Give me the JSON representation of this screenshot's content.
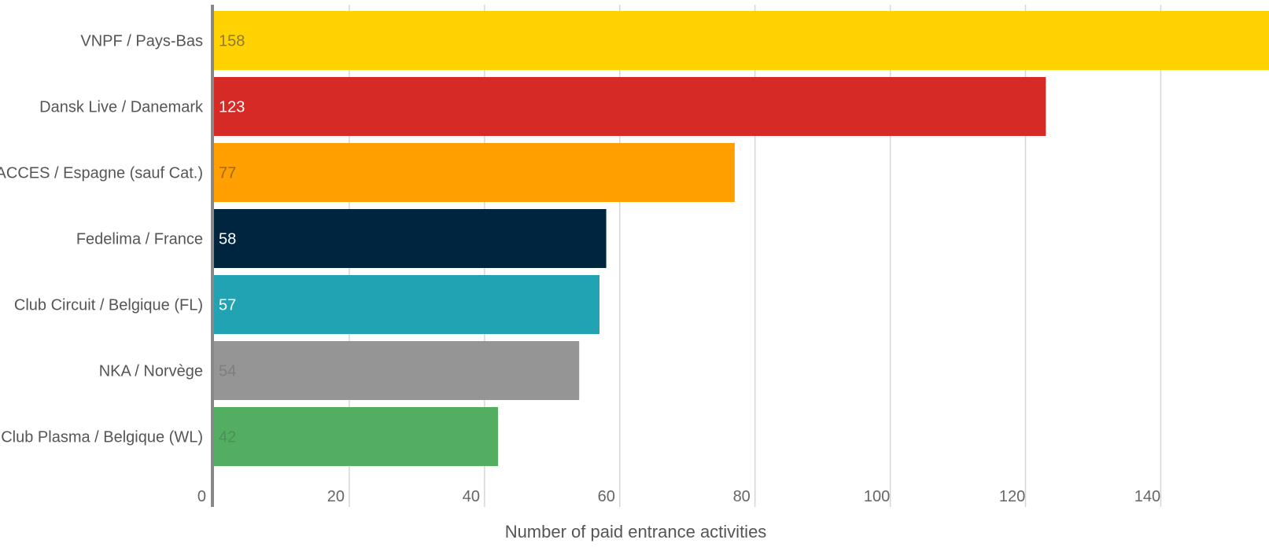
{
  "chart_data": {
    "type": "bar",
    "orientation": "horizontal",
    "categories": [
      "VNPF / Pays-Bas",
      "Dansk Live / Danemark",
      "ACCES / Espagne (sauf Cat.)",
      "Fedelima / France",
      "Club Circuit / Belgique (FL)",
      "NKA / Norvège",
      "Club Plasma / Belgique (WL)"
    ],
    "values": [
      158,
      123,
      77,
      58,
      57,
      54,
      42
    ],
    "colors": [
      "#FFD200",
      "#D62A27",
      "#FF9F00",
      "#00253E",
      "#21A3B3",
      "#959595",
      "#53AE62"
    ],
    "label_colors": [
      "#8a7a3a",
      "#ffffff",
      "#9c6a1e",
      "#ffffff",
      "#ffffff",
      "#7e7e7e",
      "#4c8f58"
    ],
    "xticks": [
      0,
      20,
      40,
      60,
      80,
      100,
      120,
      140
    ],
    "xlim": [
      0,
      156
    ],
    "xlabel": "Number of paid entrance activities",
    "ylabel": "",
    "title": "",
    "grid": true,
    "legend": "none"
  }
}
